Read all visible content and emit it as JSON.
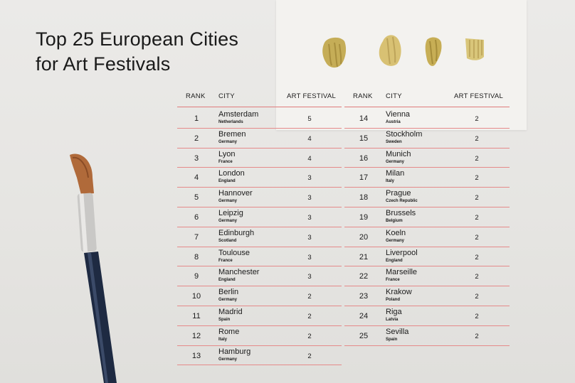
{
  "title": {
    "line1": "Top 25 European Cities",
    "line2": "for Art Festivals"
  },
  "headers": {
    "rank": "RANK",
    "city": "CITY",
    "festival": "ART FESTIVAL"
  },
  "left_rows": [
    {
      "rank": "1",
      "city": "Amsterdam",
      "country": "Netherlands",
      "festivals": "5"
    },
    {
      "rank": "2",
      "city": "Bremen",
      "country": "Germany",
      "festivals": "4"
    },
    {
      "rank": "3",
      "city": "Lyon",
      "country": "France",
      "festivals": "4"
    },
    {
      "rank": "4",
      "city": "London",
      "country": "England",
      "festivals": "3"
    },
    {
      "rank": "5",
      "city": "Hannover",
      "country": "Germany",
      "festivals": "3"
    },
    {
      "rank": "6",
      "city": "Leipzig",
      "country": "Germany",
      "festivals": "3"
    },
    {
      "rank": "7",
      "city": "Edinburgh",
      "country": "Scotland",
      "festivals": "3"
    },
    {
      "rank": "8",
      "city": "Toulouse",
      "country": "France",
      "festivals": "3"
    },
    {
      "rank": "9",
      "city": "Manchester",
      "country": "England",
      "festivals": "3"
    },
    {
      "rank": "10",
      "city": "Berlin",
      "country": "Germany",
      "festivals": "2"
    },
    {
      "rank": "11",
      "city": "Madrid",
      "country": "Spain",
      "festivals": "2"
    },
    {
      "rank": "12",
      "city": "Rome",
      "country": "Italy",
      "festivals": "2"
    },
    {
      "rank": "13",
      "city": "Hamburg",
      "country": "Germany",
      "festivals": "2"
    }
  ],
  "right_rows": [
    {
      "rank": "14",
      "city": "Vienna",
      "country": "Austria",
      "festivals": "2"
    },
    {
      "rank": "15",
      "city": "Stockholm",
      "country": "Sweden",
      "festivals": "2"
    },
    {
      "rank": "16",
      "city": "Munich",
      "country": "Germany",
      "festivals": "2"
    },
    {
      "rank": "17",
      "city": "Milan",
      "country": "Italy",
      "festivals": "2"
    },
    {
      "rank": "18",
      "city": "Prague",
      "country": "Czech Republic",
      "festivals": "2"
    },
    {
      "rank": "19",
      "city": "Brussels",
      "country": "Belgium",
      "festivals": "2"
    },
    {
      "rank": "20",
      "city": "Koeln",
      "country": "Germany",
      "festivals": "2"
    },
    {
      "rank": "21",
      "city": "Liverpool",
      "country": "England",
      "festivals": "2"
    },
    {
      "rank": "22",
      "city": "Marseille",
      "country": "France",
      "festivals": "2"
    },
    {
      "rank": "23",
      "city": "Krakow",
      "country": "Poland",
      "festivals": "2"
    },
    {
      "rank": "24",
      "city": "Riga",
      "country": "Latvia",
      "festivals": "2"
    },
    {
      "rank": "25",
      "city": "Sevilla",
      "country": "Spain",
      "festivals": "2"
    }
  ],
  "colors": {
    "rule": "#e58a8a",
    "paint": "#c9b45c",
    "background": "#e8e7e4"
  },
  "decorations": [
    "paint-swatch-icon",
    "paintbrush-icon"
  ]
}
